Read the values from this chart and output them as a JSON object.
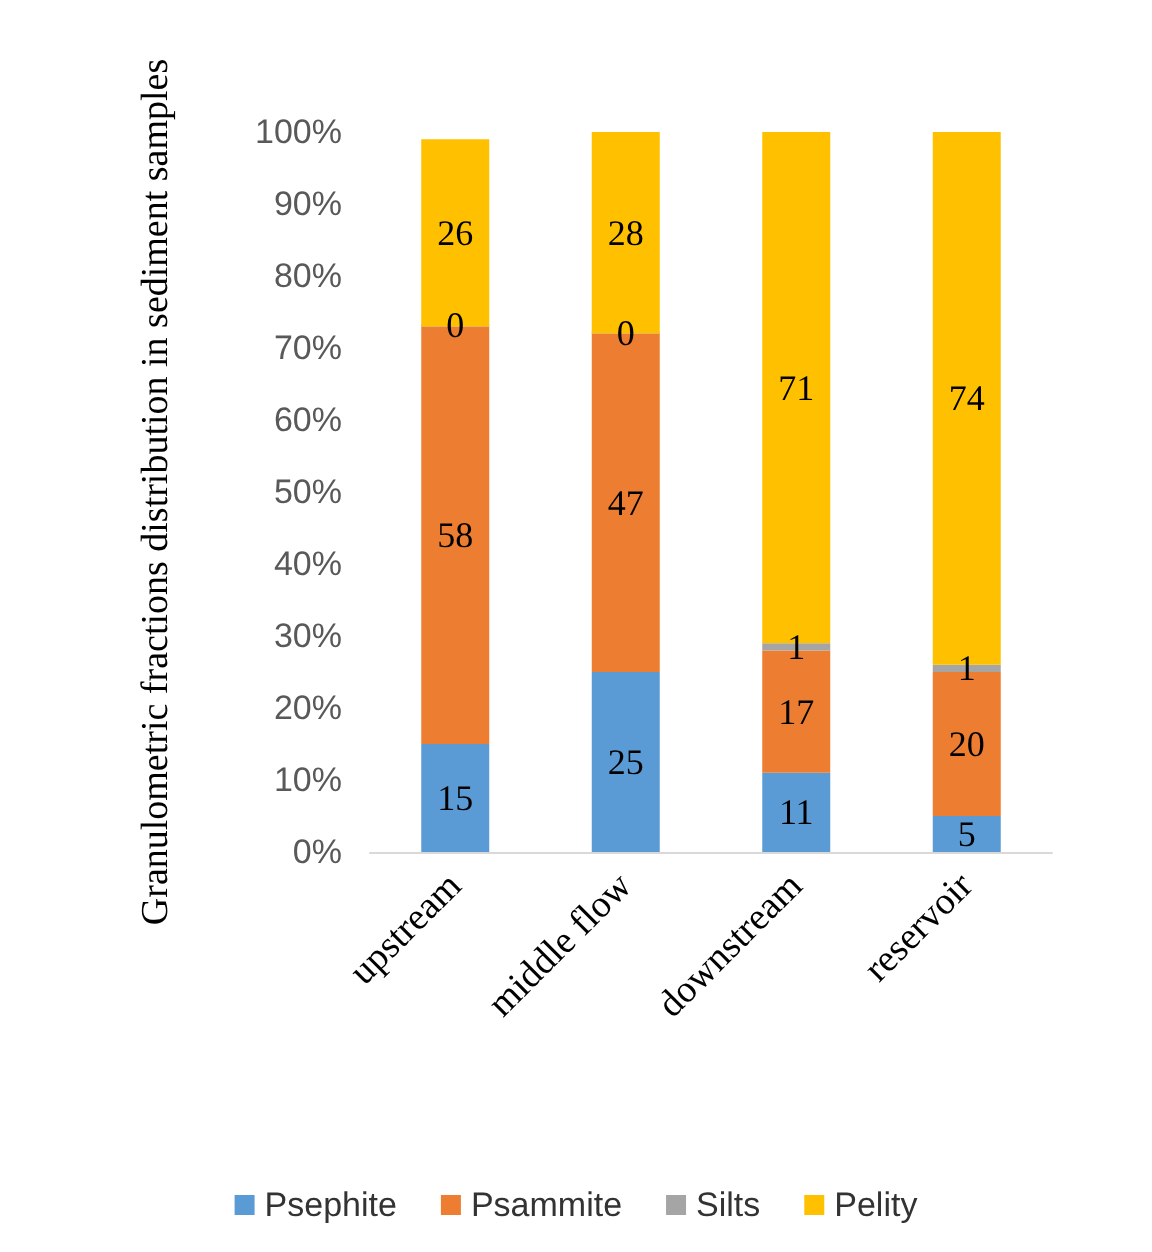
{
  "chart_data": {
    "type": "bar",
    "stacked": true,
    "ylabel": "Granulometric fractions distribution in sediment samples",
    "categories": [
      "upstream",
      "middle flow",
      "downstream",
      "reservoir"
    ],
    "series": [
      {
        "name": "Psephite",
        "color": "#5b9bd5",
        "values": [
          15,
          25,
          11,
          5
        ]
      },
      {
        "name": "Psammite",
        "color": "#ed7d31",
        "values": [
          58,
          47,
          17,
          20
        ]
      },
      {
        "name": "Silts",
        "color": "#a5a5a5",
        "values": [
          0,
          0,
          1,
          1
        ]
      },
      {
        "name": "Pelity",
        "color": "#ffc000",
        "values": [
          26,
          28,
          71,
          74
        ]
      }
    ],
    "ylim": [
      0,
      100
    ],
    "yticks": [
      {
        "value": 0,
        "label": "0%"
      },
      {
        "value": 10,
        "label": "10%"
      },
      {
        "value": 20,
        "label": "20%"
      },
      {
        "value": 30,
        "label": "30%"
      },
      {
        "value": 40,
        "label": "40%"
      },
      {
        "value": 50,
        "label": "50%"
      },
      {
        "value": 60,
        "label": "60%"
      },
      {
        "value": 70,
        "label": "70%"
      },
      {
        "value": 80,
        "label": "80%"
      },
      {
        "value": 90,
        "label": "90%"
      },
      {
        "value": 100,
        "label": "100%"
      }
    ],
    "data_labels": true,
    "grid": false,
    "legend": "bottom"
  }
}
